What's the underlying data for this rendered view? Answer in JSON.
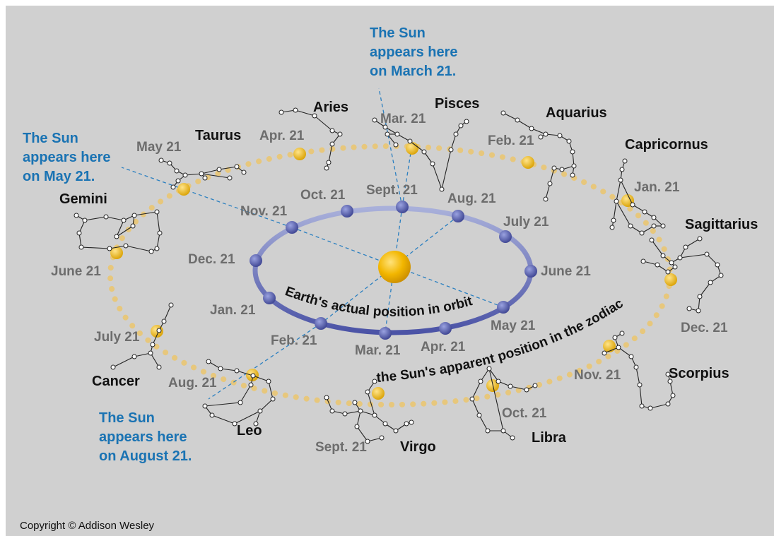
{
  "copyright": "Copyright © Addison Wesley",
  "labels": {
    "earth_orbit": "Earth's actual position in orbit",
    "zodiac": "the Sun's apparent position in the zodiac"
  },
  "callouts": {
    "march": [
      "The Sun",
      "appears here",
      "on March 21."
    ],
    "may": [
      "The Sun",
      "appears here",
      "on May 21."
    ],
    "august": [
      "The Sun",
      "appears here",
      "on August 21."
    ]
  },
  "constellations": {
    "aries": "Aries",
    "pisces": "Pisces",
    "aquarius": "Aquarius",
    "capricornus": "Capricornus",
    "sagittarius": "Sagittarius",
    "scorpius": "Scorpius",
    "libra": "Libra",
    "virgo": "Virgo",
    "leo": "Leo",
    "cancer": "Cancer",
    "gemini": "Gemini",
    "taurus": "Taurus"
  },
  "zodiac_dates": {
    "mar": "Mar. 21",
    "apr": "Apr. 21",
    "may": "May 21",
    "june": "June 21",
    "july": "July 21",
    "aug": "Aug. 21",
    "sept": "Sept. 21",
    "oct": "Oct. 21",
    "nov": "Nov. 21",
    "dec": "Dec. 21",
    "jan": "Jan. 21",
    "feb": "Feb. 21"
  },
  "orbit_dates": {
    "sept": "Sept. 21",
    "aug": "Aug. 21",
    "july": "July 21",
    "june": "June 21",
    "may": "May 21",
    "apr": "Apr. 21",
    "mar": "Mar. 21",
    "feb": "Feb. 21",
    "jan": "Jan. 21",
    "dec": "Dec. 21",
    "nov": "Nov. 21",
    "oct": "Oct. 21"
  },
  "colors": {
    "background": "#d0d0d0",
    "orbit": "#5b64b0",
    "earth": "#4d549e",
    "sun": "#e8a800",
    "zodiac_dots": "#e7c77c",
    "callout_text": "#1a73b3",
    "callout_line": "#2a7fc0"
  }
}
